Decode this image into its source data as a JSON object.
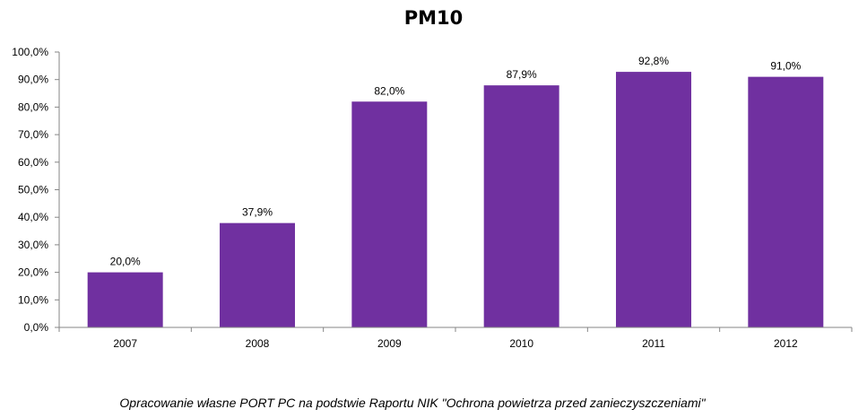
{
  "chart_data": {
    "type": "bar",
    "title": "PM10",
    "categories": [
      "2007",
      "2008",
      "2009",
      "2010",
      "2011",
      "2012"
    ],
    "values": [
      20.0,
      37.9,
      82.0,
      87.9,
      92.8,
      91.0
    ],
    "data_labels": [
      "20,0%",
      "37,9%",
      "82,0%",
      "87,9%",
      "92,8%",
      "91,0%"
    ],
    "y_ticks": [
      "0,0%",
      "10,0%",
      "20,0%",
      "30,0%",
      "40,0%",
      "50,0%",
      "60,0%",
      "70,0%",
      "80,0%",
      "90,0%",
      "100,0%"
    ],
    "ylim": [
      0,
      100
    ],
    "xlabel": "",
    "ylabel": "",
    "grid": false,
    "legend": "none",
    "bar_color": "#7030a0"
  },
  "caption": "Opracowanie własne PORT PC na podstwie Raportu NIK \"Ochrona powietrza przed zanieczyszczeniami\""
}
